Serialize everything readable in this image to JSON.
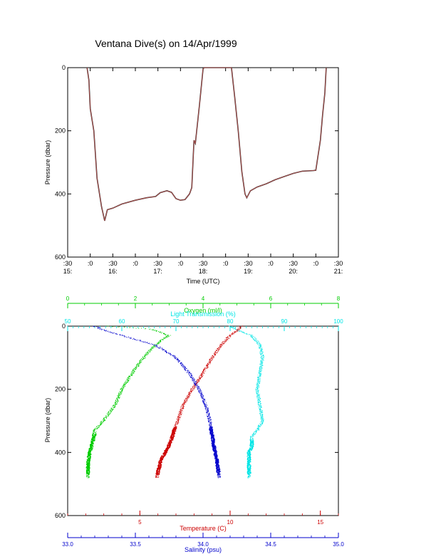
{
  "page_title": "Ventana Dive(s) on 14/Apr/1999",
  "chart_data": [
    {
      "type": "line",
      "xlabel": "Time (UTC)",
      "ylabel": "Pressure (dbar)",
      "x_unit": "hours UTC",
      "xlim": [
        15.5,
        21.5
      ],
      "ylim": [
        600,
        0
      ],
      "y_ticks": [
        "0",
        "200",
        "400",
        "600"
      ],
      "x_ticks_minor": [
        ":30",
        ":0",
        ":30",
        ":0",
        ":30",
        ":0",
        ":30",
        ":0",
        ":30",
        ":0",
        ":30",
        ":0",
        ":30"
      ],
      "x_ticks_hour": [
        "15:",
        "16:",
        "17:",
        "18:",
        "19:",
        "20:",
        "21:"
      ],
      "series": [
        {
          "color": "#c0504d",
          "points": [
            [
              15.93,
              0
            ],
            [
              15.97,
              40
            ],
            [
              16.0,
              130
            ],
            [
              16.08,
              200
            ],
            [
              16.15,
              350
            ],
            [
              16.25,
              440
            ],
            [
              16.32,
              485
            ],
            [
              16.38,
              450
            ],
            [
              16.5,
              445
            ],
            [
              16.7,
              432
            ],
            [
              17.0,
              420
            ],
            [
              17.25,
              412
            ],
            [
              17.45,
              408
            ],
            [
              17.55,
              396
            ],
            [
              17.7,
              390
            ],
            [
              17.8,
              395
            ],
            [
              17.9,
              415
            ],
            [
              18.0,
              420
            ],
            [
              18.1,
              418
            ],
            [
              18.2,
              400
            ],
            [
              18.25,
              380
            ],
            [
              18.3,
              230
            ],
            [
              18.33,
              240
            ],
            [
              18.42,
              120
            ],
            [
              18.5,
              5
            ],
            [
              18.52,
              0
            ],
            [
              19.05,
              0
            ],
            [
              19.13,
              0
            ],
            [
              19.2,
              90
            ],
            [
              19.28,
              200
            ],
            [
              19.36,
              330
            ],
            [
              19.43,
              400
            ],
            [
              19.47,
              412
            ],
            [
              19.55,
              390
            ],
            [
              19.7,
              378
            ],
            [
              19.9,
              368
            ],
            [
              20.1,
              355
            ],
            [
              20.3,
              345
            ],
            [
              20.5,
              335
            ],
            [
              20.7,
              328
            ],
            [
              20.95,
              326
            ],
            [
              21.0,
              325
            ],
            [
              21.1,
              230
            ],
            [
              21.15,
              150
            ],
            [
              21.2,
              80
            ],
            [
              21.23,
              0
            ]
          ]
        }
      ]
    },
    {
      "type": "scatter",
      "ylabel": "Pressure (dbar)",
      "ylim": [
        600,
        0
      ],
      "y_ticks": [
        "0",
        "200",
        "400",
        "600"
      ],
      "axes": {
        "oxygen": {
          "label": "Oxygen (ml/l)",
          "range": [
            0,
            8
          ],
          "ticks": [
            "0",
            "2",
            "4",
            "6",
            "8"
          ],
          "color": "#00cc00",
          "position": "top"
        },
        "light": {
          "label": "Light Transmission (%)",
          "range": [
            50,
            100
          ],
          "ticks": [
            "50",
            "60",
            "70",
            "80",
            "90",
            "100"
          ],
          "color": "#00e5e5",
          "position": "top"
        },
        "temperature": {
          "label": "Temperature (C)",
          "range": [
            1,
            16
          ],
          "ticks": [
            "5",
            "10",
            "15"
          ],
          "color": "#cc0000",
          "position": "bottom"
        },
        "salinity": {
          "label": "Salinity (psu)",
          "range": [
            33.0,
            35.0
          ],
          "ticks": [
            "33.0",
            "33.5",
            "34.0",
            "34.5",
            "35.0"
          ],
          "color": "#0000cc",
          "position": "bottom"
        }
      },
      "series": [
        {
          "axis": "oxygen",
          "color": "#00cc00",
          "profile": [
            [
              0,
              1.2
            ],
            [
              10,
              2.5
            ],
            [
              30,
              3.0
            ],
            [
              50,
              2.7
            ],
            [
              80,
              2.4
            ],
            [
              120,
              2.1
            ],
            [
              150,
              1.9
            ],
            [
              200,
              1.6
            ],
            [
              250,
              1.4
            ],
            [
              300,
              1.05
            ],
            [
              330,
              0.8
            ],
            [
              350,
              0.78
            ],
            [
              380,
              0.7
            ],
            [
              400,
              0.65
            ],
            [
              420,
              0.62
            ],
            [
              450,
              0.6
            ],
            [
              480,
              0.6
            ]
          ],
          "heavy_range": [
            340,
            470
          ]
        },
        {
          "axis": "light",
          "color": "#00e5e5",
          "profile": [
            [
              0,
              80
            ],
            [
              10,
              81
            ],
            [
              30,
              84
            ],
            [
              60,
              85.5
            ],
            [
              100,
              86
            ],
            [
              150,
              85.5
            ],
            [
              200,
              85
            ],
            [
              250,
              85.5
            ],
            [
              300,
              86
            ],
            [
              330,
              85
            ],
            [
              350,
              84
            ],
            [
              380,
              84
            ],
            [
              400,
              83.5
            ],
            [
              420,
              83.5
            ],
            [
              450,
              83.5
            ],
            [
              480,
              83.5
            ]
          ],
          "heavy_range": [
            360,
            470
          ]
        },
        {
          "axis": "temperature",
          "color": "#cc0000",
          "profile": [
            [
              0,
              10.6
            ],
            [
              10,
              10.5
            ],
            [
              30,
              10.0
            ],
            [
              60,
              9.5
            ],
            [
              100,
              9.0
            ],
            [
              150,
              8.5
            ],
            [
              200,
              7.9
            ],
            [
              250,
              7.4
            ],
            [
              300,
              7.1
            ],
            [
              330,
              6.9
            ],
            [
              350,
              6.8
            ],
            [
              380,
              6.6
            ],
            [
              400,
              6.4
            ],
            [
              420,
              6.2
            ],
            [
              450,
              6.05
            ],
            [
              480,
              5.95
            ]
          ],
          "heavy_range": [
            320,
            470
          ]
        },
        {
          "axis": "salinity",
          "color": "#0000cc",
          "profile": [
            [
              0,
              33.2
            ],
            [
              10,
              33.25
            ],
            [
              30,
              33.4
            ],
            [
              60,
              33.65
            ],
            [
              100,
              33.8
            ],
            [
              150,
              33.9
            ],
            [
              200,
              33.97
            ],
            [
              250,
              34.02
            ],
            [
              300,
              34.05
            ],
            [
              330,
              34.06
            ],
            [
              350,
              34.07
            ],
            [
              380,
              34.08
            ],
            [
              400,
              34.09
            ],
            [
              420,
              34.1
            ],
            [
              450,
              34.11
            ],
            [
              480,
              34.12
            ]
          ],
          "heavy_range": [
            320,
            470
          ]
        }
      ]
    }
  ]
}
